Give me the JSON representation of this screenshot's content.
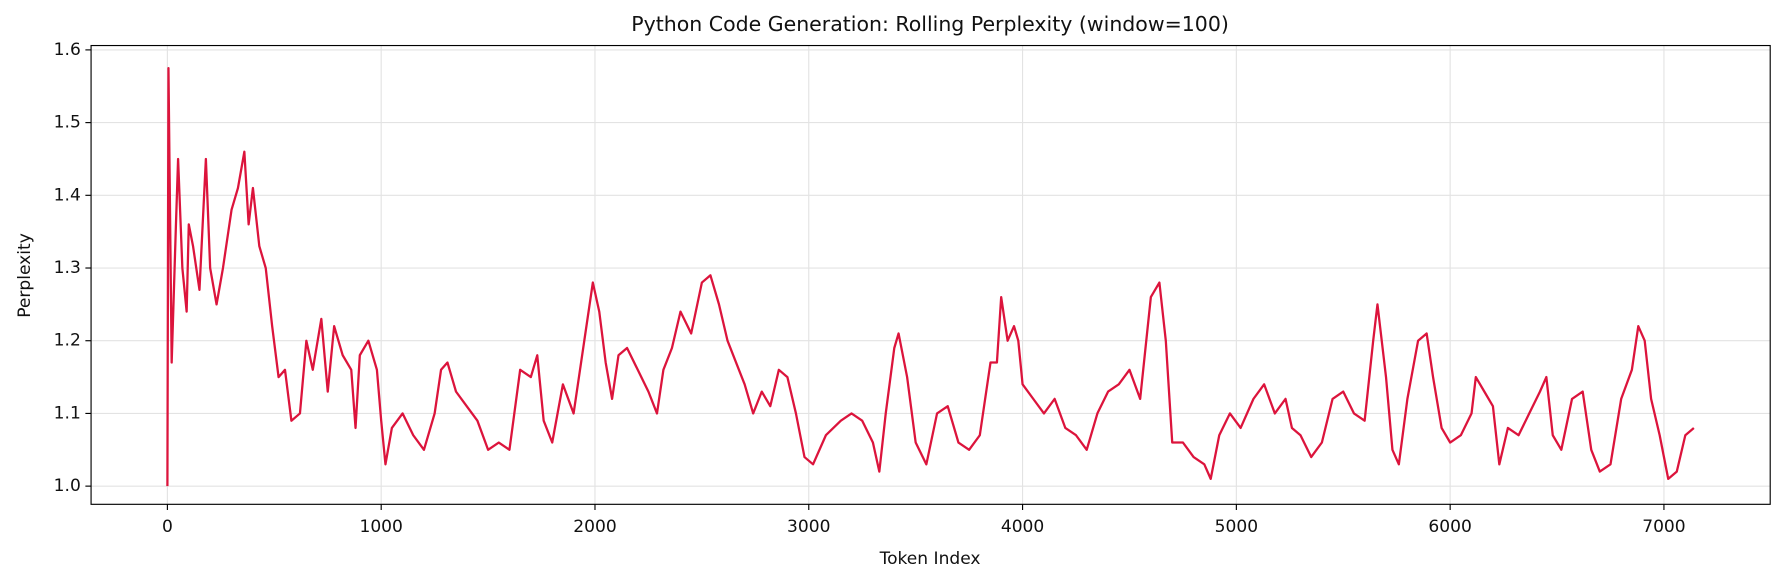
{
  "chart_data": {
    "type": "line",
    "title": "Python Code Generation: Rolling Perplexity (window=100)",
    "xlabel": "Token Index",
    "ylabel": "Perplexity",
    "color": "#dc143c",
    "grid": true,
    "xlim": [
      -357,
      7497
    ],
    "ylim": [
      0.975,
      1.606
    ],
    "xticks": [
      0,
      1000,
      2000,
      3000,
      4000,
      5000,
      6000,
      7000
    ],
    "yticks": [
      {
        "value": 1,
        "label": "1.0"
      },
      1.1,
      1.2,
      1.3,
      1.4,
      1.5,
      1.6
    ],
    "x": [
      0,
      5,
      20,
      40,
      50,
      70,
      90,
      100,
      120,
      150,
      180,
      200,
      230,
      260,
      300,
      330,
      360,
      380,
      400,
      430,
      460,
      490,
      520,
      550,
      580,
      620,
      650,
      680,
      720,
      750,
      780,
      820,
      860,
      880,
      900,
      940,
      980,
      1000,
      1020,
      1050,
      1100,
      1150,
      1200,
      1250,
      1280,
      1310,
      1350,
      1400,
      1450,
      1500,
      1550,
      1600,
      1650,
      1700,
      1730,
      1760,
      1800,
      1850,
      1900,
      1950,
      1990,
      2020,
      2050,
      2080,
      2110,
      2150,
      2200,
      2250,
      2290,
      2320,
      2360,
      2400,
      2450,
      2500,
      2540,
      2580,
      2620,
      2660,
      2700,
      2740,
      2780,
      2820,
      2860,
      2900,
      2940,
      2980,
      3020,
      3080,
      3150,
      3200,
      3250,
      3300,
      3330,
      3360,
      3400,
      3420,
      3460,
      3500,
      3550,
      3600,
      3650,
      3700,
      3750,
      3800,
      3850,
      3880,
      3900,
      3930,
      3960,
      3980,
      4000,
      4050,
      4100,
      4150,
      4200,
      4250,
      4300,
      4350,
      4400,
      4450,
      4500,
      4550,
      4600,
      4640,
      4670,
      4700,
      4750,
      4800,
      4850,
      4880,
      4920,
      4970,
      5020,
      5080,
      5130,
      5180,
      5230,
      5260,
      5300,
      5350,
      5400,
      5450,
      5500,
      5550,
      5600,
      5640,
      5660,
      5700,
      5730,
      5760,
      5800,
      5850,
      5890,
      5920,
      5960,
      6000,
      6050,
      6100,
      6120,
      6160,
      6200,
      6230,
      6270,
      6320,
      6370,
      6420,
      6450,
      6480,
      6520,
      6570,
      6620,
      6660,
      6700,
      6750,
      6800,
      6850,
      6880,
      6910,
      6940,
      6980,
      7020,
      7060,
      7100,
      7140
    ],
    "series": [
      {
        "name": "Rolling Perplexity",
        "color": "#dc143c",
        "values": [
          1.0,
          1.575,
          1.17,
          1.36,
          1.45,
          1.3,
          1.24,
          1.36,
          1.33,
          1.27,
          1.45,
          1.3,
          1.25,
          1.3,
          1.38,
          1.41,
          1.46,
          1.36,
          1.41,
          1.33,
          1.3,
          1.22,
          1.15,
          1.16,
          1.09,
          1.1,
          1.2,
          1.16,
          1.23,
          1.13,
          1.22,
          1.18,
          1.16,
          1.08,
          1.18,
          1.2,
          1.16,
          1.09,
          1.03,
          1.08,
          1.1,
          1.07,
          1.05,
          1.1,
          1.16,
          1.17,
          1.13,
          1.11,
          1.09,
          1.05,
          1.06,
          1.05,
          1.16,
          1.15,
          1.18,
          1.09,
          1.06,
          1.14,
          1.1,
          1.2,
          1.28,
          1.24,
          1.17,
          1.12,
          1.18,
          1.19,
          1.16,
          1.13,
          1.1,
          1.16,
          1.19,
          1.24,
          1.21,
          1.28,
          1.29,
          1.25,
          1.2,
          1.17,
          1.14,
          1.1,
          1.13,
          1.11,
          1.16,
          1.15,
          1.1,
          1.04,
          1.03,
          1.07,
          1.09,
          1.1,
          1.09,
          1.06,
          1.02,
          1.1,
          1.19,
          1.21,
          1.15,
          1.06,
          1.03,
          1.1,
          1.11,
          1.06,
          1.05,
          1.07,
          1.17,
          1.17,
          1.26,
          1.2,
          1.22,
          1.2,
          1.14,
          1.12,
          1.1,
          1.12,
          1.08,
          1.07,
          1.05,
          1.1,
          1.13,
          1.14,
          1.16,
          1.12,
          1.26,
          1.28,
          1.2,
          1.06,
          1.06,
          1.04,
          1.03,
          1.01,
          1.07,
          1.1,
          1.08,
          1.12,
          1.14,
          1.1,
          1.12,
          1.08,
          1.07,
          1.04,
          1.06,
          1.12,
          1.13,
          1.1,
          1.09,
          1.2,
          1.25,
          1.15,
          1.05,
          1.03,
          1.12,
          1.2,
          1.21,
          1.15,
          1.08,
          1.06,
          1.07,
          1.1,
          1.15,
          1.13,
          1.11,
          1.03,
          1.08,
          1.07,
          1.1,
          1.13,
          1.15,
          1.07,
          1.05,
          1.12,
          1.13,
          1.05,
          1.02,
          1.03,
          1.12,
          1.16,
          1.22,
          1.2,
          1.12,
          1.07,
          1.01,
          1.02,
          1.07,
          1.08
        ]
      }
    ]
  }
}
